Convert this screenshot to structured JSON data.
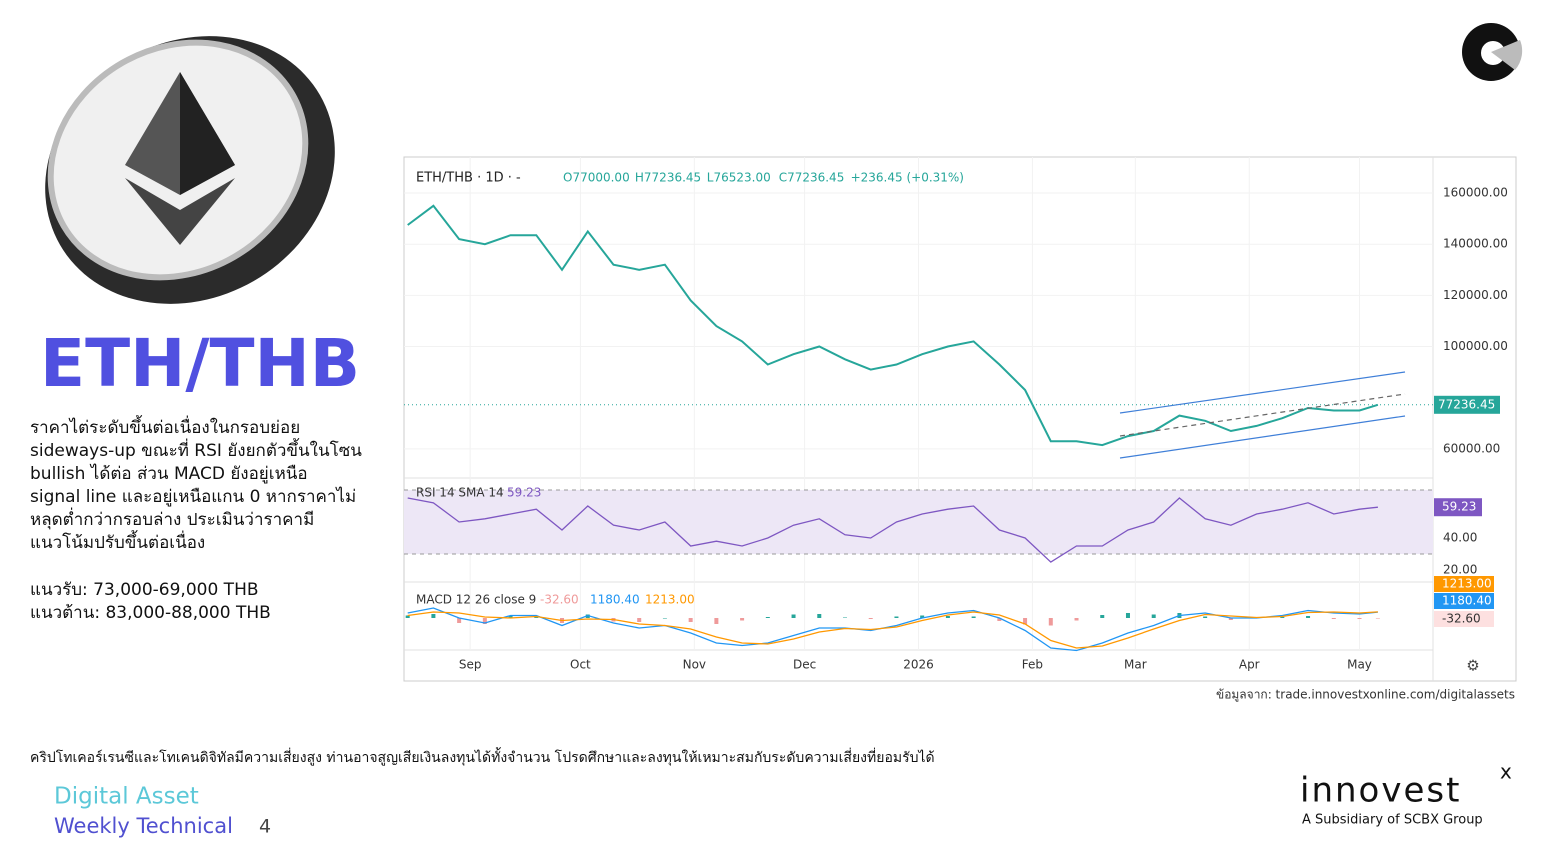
{
  "slide": {
    "title": "ETH/THB",
    "body_lines": [
      "ราคาไต่ระดับขึ้นต่อเนื่องในกรอบย่อย",
      "sideways-up ขณะที่ RSI ยังยกตัวขึ้นในโซน",
      "bullish ได้ต่อ ส่วน MACD ยังอยู่เหนือ",
      "signal line และอยู่เหนือแกน 0 หากราคาไม่",
      "หลุดต่ำกว่ากรอบล่าง ประเมินว่าราคามี",
      "แนวโน้มปรับขึ้นต่อเนื่อง"
    ],
    "support": "แนวรับ: 73,000-69,000 THB",
    "resistance": "แนวต้าน: 83,000-88,000 THB",
    "source": "ข้อมูลจาก: trade.innovestxonline.com/digitalassets",
    "disclaimer": "คริปโทเคอร์เรนซีและโทเคนดิจิทัลมีความเสี่ยงสูง ท่านอาจสูญเสียเงินลงทุนได้ทั้งจำนวน โปรดศึกษาและลงทุนให้เหมาะสมกับระดับความเสี่ยงที่ยอมรับได้",
    "footer_line1": "Digital Asset",
    "footer_line2": "Weekly Technical",
    "page_number": "4",
    "brand": "innovest",
    "brand_mark": "x",
    "brand_tagline": "A Subsidiary of SCBX Group"
  },
  "chart_data": {
    "type": "line",
    "symbol": "ETH/THB · 1D · -",
    "ohlc_labels": [
      "O77000.00",
      "H77236.45",
      "L76523.00",
      "C77236.45",
      "+236.45 (+0.31%)"
    ],
    "x": [
      0,
      7,
      14,
      21,
      28,
      35,
      42,
      49,
      56,
      63,
      70,
      77,
      84,
      91,
      98,
      105,
      112,
      119,
      126,
      133,
      140,
      147,
      154,
      161,
      168,
      175,
      182,
      189,
      196,
      203,
      210,
      217,
      224,
      231,
      238,
      245,
      252,
      259,
      264
    ],
    "xlim": [
      -1,
      279
    ],
    "xticks": [
      {
        "value": 17,
        "label": "Sep"
      },
      {
        "value": 47,
        "label": "Oct"
      },
      {
        "value": 78,
        "label": "Nov"
      },
      {
        "value": 108,
        "label": "Dec"
      },
      {
        "value": 139,
        "label": "2026"
      },
      {
        "value": 170,
        "label": "Feb"
      },
      {
        "value": 198,
        "label": "Mar"
      },
      {
        "value": 229,
        "label": "Apr"
      },
      {
        "value": 259,
        "label": "May"
      }
    ],
    "ylim": [
      49800,
      172900
    ],
    "yticks": [
      {
        "value": 160000,
        "label": "160000.00"
      },
      {
        "value": 140000,
        "label": "140000.00"
      },
      {
        "value": 120000,
        "label": "120000.00"
      },
      {
        "value": 100000,
        "label": "100000.00"
      },
      {
        "value": 60000,
        "label": "60000.00"
      }
    ],
    "series": [
      {
        "name": "ETH/THB",
        "color": "#26a69a",
        "values": [
          147500,
          155000,
          142000,
          140000,
          143500,
          143500,
          130000,
          145000,
          132000,
          130000,
          132000,
          118000,
          108000,
          102000,
          93000,
          97000,
          100000,
          95000,
          91000,
          93000,
          97000,
          100000,
          102000,
          93000,
          83000,
          63000,
          63000,
          61500,
          65000,
          67000,
          73000,
          71000,
          67000,
          69000,
          72000,
          76000,
          75000,
          75000,
          77236.45
        ]
      }
    ],
    "rsi": {
      "name": "RSI 14 SMA 14",
      "color": "#7e57c2",
      "ylim": [
        13.8,
        73.1
      ],
      "band": [
        30,
        70
      ],
      "yticks": [
        {
          "value": 40,
          "label": "40.00"
        },
        {
          "value": 20,
          "label": "20.00"
        }
      ],
      "values": [
        65,
        62,
        50,
        52,
        55,
        58,
        45,
        60,
        48,
        45,
        50,
        35,
        38,
        35,
        40,
        48,
        52,
        42,
        40,
        50,
        55,
        58,
        60,
        45,
        40,
        25,
        35,
        35,
        45,
        50,
        65,
        52,
        48,
        55,
        58,
        62,
        55,
        58,
        59.23
      ]
    },
    "macd": {
      "name": "MACD 12 26 close 9",
      "ylim": [
        -6400,
        7000
      ],
      "legend_labels": [
        "-32.60",
        "1180.40",
        "1213.00"
      ],
      "histogram": {
        "color": "#ef9a9a",
        "values": [
          500,
          800,
          -1000,
          -1200,
          500,
          200,
          -1000,
          700,
          -700,
          -800,
          0,
          -800,
          -1200,
          -500,
          200,
          700,
          800,
          100,
          -200,
          300,
          500,
          400,
          300,
          -600,
          -1300,
          -1500,
          -500,
          600,
          1000,
          700,
          1000,
          300,
          -400,
          -100,
          200,
          400,
          -200,
          -200,
          -32.6
        ]
      },
      "macd_line": {
        "color": "#2196f3",
        "values": [
          1000,
          2000,
          0,
          -1000,
          500,
          500,
          -1500,
          500,
          -1000,
          -2000,
          -1500,
          -3000,
          -5000,
          -5500,
          -5000,
          -3500,
          -2000,
          -2000,
          -2500,
          -1500,
          0,
          1000,
          1500,
          0,
          -2500,
          -6000,
          -6500,
          -5000,
          -3000,
          -1500,
          500,
          1000,
          0,
          0,
          500,
          1500,
          1000,
          800,
          1180.4
        ]
      },
      "signal_line": {
        "color": "#ff9800",
        "values": [
          500,
          1200,
          1000,
          200,
          0,
          300,
          -500,
          -200,
          -300,
          -1200,
          -1500,
          -2200,
          -3800,
          -5000,
          -5200,
          -4200,
          -2800,
          -2100,
          -2300,
          -1800,
          -500,
          600,
          1200,
          600,
          -1200,
          -4500,
          -6000,
          -5600,
          -4000,
          -2200,
          -500,
          700,
          400,
          100,
          300,
          1100,
          1200,
          1000,
          1213
        ]
      }
    }
  }
}
